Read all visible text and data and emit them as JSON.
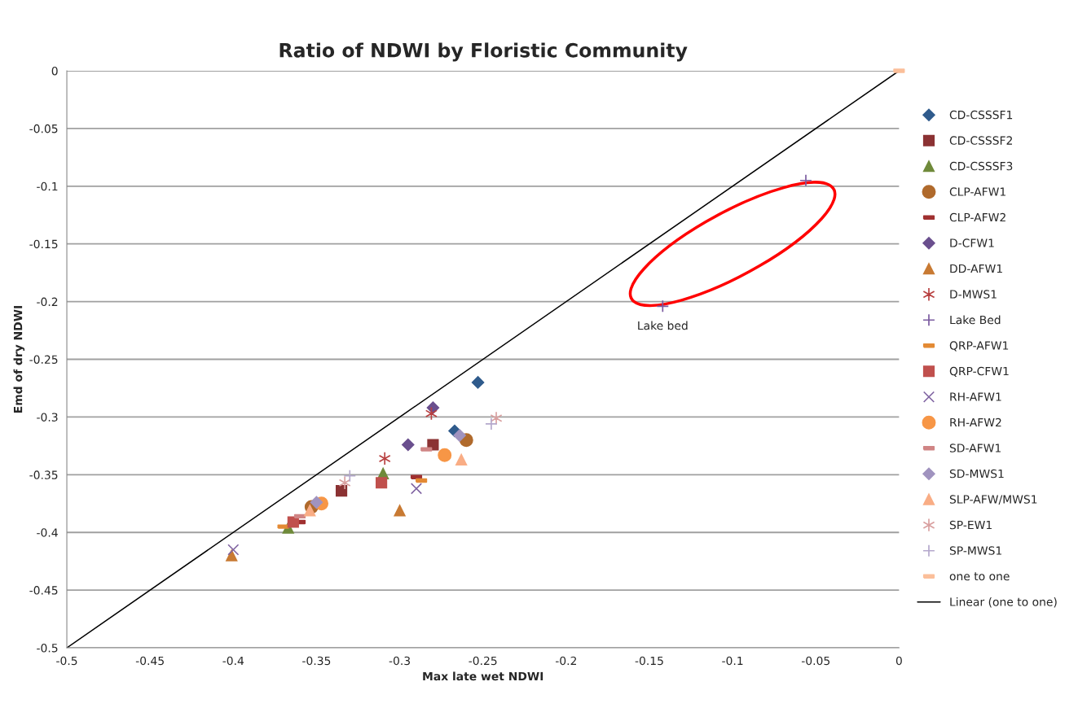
{
  "chart_data": {
    "type": "scatter",
    "title": "Ratio of NDWI by Floristic Community",
    "xlabel": "Max late wet NDWI",
    "ylabel": "Emd of dry NDWI",
    "xlim": [
      -0.5,
      0
    ],
    "xticks": [
      -0.5,
      -0.45,
      -0.4,
      -0.35,
      -0.3,
      -0.25,
      -0.2,
      -0.15,
      -0.1,
      -0.05,
      0
    ],
    "ylim": [
      -0.5,
      0
    ],
    "yticks": [
      -0.5,
      -0.45,
      -0.4,
      -0.35,
      -0.3,
      -0.25,
      -0.2,
      -0.15,
      -0.1,
      -0.05,
      0
    ],
    "grid": "y",
    "legend": "right",
    "annotations": [
      {
        "text": "Lake bed",
        "x": -0.142,
        "y": -0.204
      }
    ],
    "series": [
      {
        "name": "CD-CSSSF1",
        "color": "#2f5b8c",
        "marker": "diamond",
        "x": [
          -0.253,
          -0.267
        ],
        "values": [
          -0.27,
          -0.312
        ]
      },
      {
        "name": "CD-CSSSF2",
        "color": "#8b3233",
        "marker": "square",
        "x": [
          -0.28,
          -0.335
        ],
        "values": [
          -0.324,
          -0.364
        ]
      },
      {
        "name": "CD-CSSSF3",
        "color": "#6f8a3a",
        "marker": "triangle",
        "x": [
          -0.31,
          -0.367
        ],
        "values": [
          -0.349,
          -0.396
        ]
      },
      {
        "name": "CLP-AFW1",
        "color": "#b06a2c",
        "marker": "circle",
        "x": [
          -0.26,
          -0.353
        ],
        "values": [
          -0.32,
          -0.378
        ]
      },
      {
        "name": "CLP-AFW2",
        "color": "#a03030",
        "x": [
          -0.29,
          -0.36
        ],
        "values": [
          -0.352,
          -0.391
        ]
      },
      {
        "name": "D-CFW1",
        "color": "#6a4f8e",
        "marker": "diamond",
        "x": [
          -0.28,
          -0.295
        ],
        "values": [
          -0.292,
          -0.324
        ]
      },
      {
        "name": "DD-AFW1",
        "color": "#c87a33",
        "marker": "triangle",
        "x": [
          -0.3,
          -0.401
        ],
        "values": [
          -0.381,
          -0.42
        ]
      },
      {
        "name": "D-MWS1",
        "color": "#b84040",
        "marker": "cross",
        "x": [
          -0.281,
          -0.309
        ],
        "values": [
          -0.297,
          -0.336
        ]
      },
      {
        "name": "Lake Bed",
        "color": "#7a5aa0",
        "marker": "plus",
        "x": [
          -0.142,
          -0.056
        ],
        "values": [
          -0.204,
          -0.095
        ]
      },
      {
        "name": "QRP-AFW1",
        "color": "#e38a34",
        "x": [
          -0.287,
          -0.37
        ],
        "values": [
          -0.355,
          -0.395
        ]
      },
      {
        "name": "QRP-CFW1",
        "color": "#c0504d",
        "marker": "square",
        "x": [
          -0.311,
          -0.364
        ],
        "values": [
          -0.357,
          -0.391
        ]
      },
      {
        "name": "RH-AFW1",
        "color": "#8064a2",
        "marker": "x",
        "x": [
          -0.29,
          -0.4
        ],
        "values": [
          -0.362,
          -0.415
        ]
      },
      {
        "name": "RH-AFW2",
        "color": "#f79646",
        "marker": "circle",
        "x": [
          -0.273,
          -0.347
        ],
        "values": [
          -0.333,
          -0.375
        ]
      },
      {
        "name": "SD-AFW1",
        "color": "#d08585",
        "x": [
          -0.284,
          -0.36
        ],
        "values": [
          -0.328,
          -0.386
        ]
      },
      {
        "name": "SD-MWS1",
        "color": "#a093bf",
        "marker": "diamond",
        "x": [
          -0.264,
          -0.35
        ],
        "values": [
          -0.316,
          -0.374
        ]
      },
      {
        "name": "SLP-AFW/MWS1",
        "color": "#f9ad85",
        "marker": "triangle",
        "x": [
          -0.263,
          -0.354
        ],
        "values": [
          -0.337,
          -0.381
        ]
      },
      {
        "name": "SP-EW1",
        "color": "#d9a0a0",
        "marker": "cross",
        "x": [
          -0.242,
          -0.333
        ],
        "values": [
          -0.301,
          -0.357
        ]
      },
      {
        "name": "SP-MWS1",
        "color": "#b4a8cc",
        "marker": "plus",
        "x": [
          -0.245,
          -0.33
        ],
        "values": [
          -0.306,
          -0.351
        ]
      },
      {
        "name": "one to one",
        "color": "#fbbf9a",
        "x": [
          0
        ],
        "values": [
          0
        ]
      },
      {
        "name": "Linear (one to one)",
        "type": "line",
        "color": "#000000",
        "marker": "none",
        "line_style": "solid",
        "x": [
          -0.5,
          0
        ],
        "values": [
          -0.5,
          0
        ]
      }
    ]
  }
}
